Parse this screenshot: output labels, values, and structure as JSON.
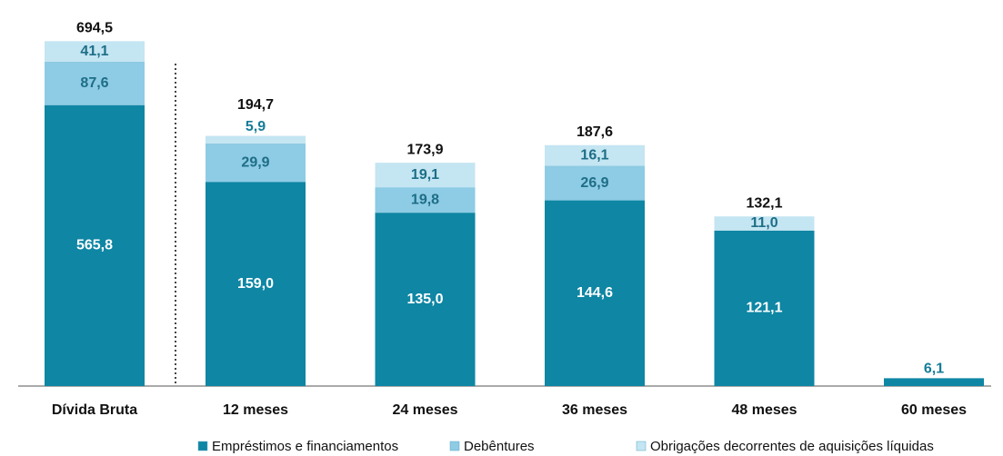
{
  "chart_data": [
    {
      "type": "bar",
      "stacked": true,
      "categories": [
        "Dívida Bruta"
      ],
      "series": [
        {
          "color": "#0e86a4",
          "values": [
            565.8
          ],
          "value_labels": [
            "565,8"
          ]
        },
        {
          "color": "#8ecbe4",
          "values": [
            87.6
          ],
          "value_labels": [
            "87,6"
          ]
        },
        {
          "color": "#c4e5f2",
          "values": [
            41.1
          ],
          "value_labels": [
            "41,1"
          ]
        }
      ],
      "totals": [
        694.5
      ],
      "total_labels": [
        "694,5"
      ],
      "ylim": [
        0,
        750
      ]
    },
    {
      "type": "bar",
      "stacked": true,
      "categories": [
        "12 meses",
        "24 meses",
        "36 meses",
        "48 meses",
        "60 meses"
      ],
      "series": [
        {
          "name": "Empréstimos e financiamentos",
          "color": "#0e86a4",
          "values": [
            159.0,
            135.0,
            144.6,
            121.1,
            6.1
          ],
          "value_labels": [
            "159,0",
            "135,0",
            "144,6",
            "121,1",
            "6,1"
          ]
        },
        {
          "name": "Debêntures",
          "color": "#8ecbe4",
          "values": [
            29.9,
            19.8,
            26.9,
            null,
            null
          ],
          "value_labels": [
            "29,9",
            "19,8",
            "26,9",
            null,
            null
          ]
        },
        {
          "name": "Obrigações decorrentes de aquisições líquidas",
          "color": "#c4e5f2",
          "values": [
            5.9,
            19.1,
            16.1,
            11.0,
            null
          ],
          "value_labels": [
            "5,9",
            "19,1",
            "16,1",
            "11,0",
            null
          ]
        }
      ],
      "totals": [
        194.7,
        173.9,
        187.6,
        132.1,
        null
      ],
      "total_labels": [
        "194,7",
        "173,9",
        "187,6",
        "132,1",
        null
      ],
      "ylim": [
        0,
        290
      ],
      "legend": "bottom"
    }
  ]
}
